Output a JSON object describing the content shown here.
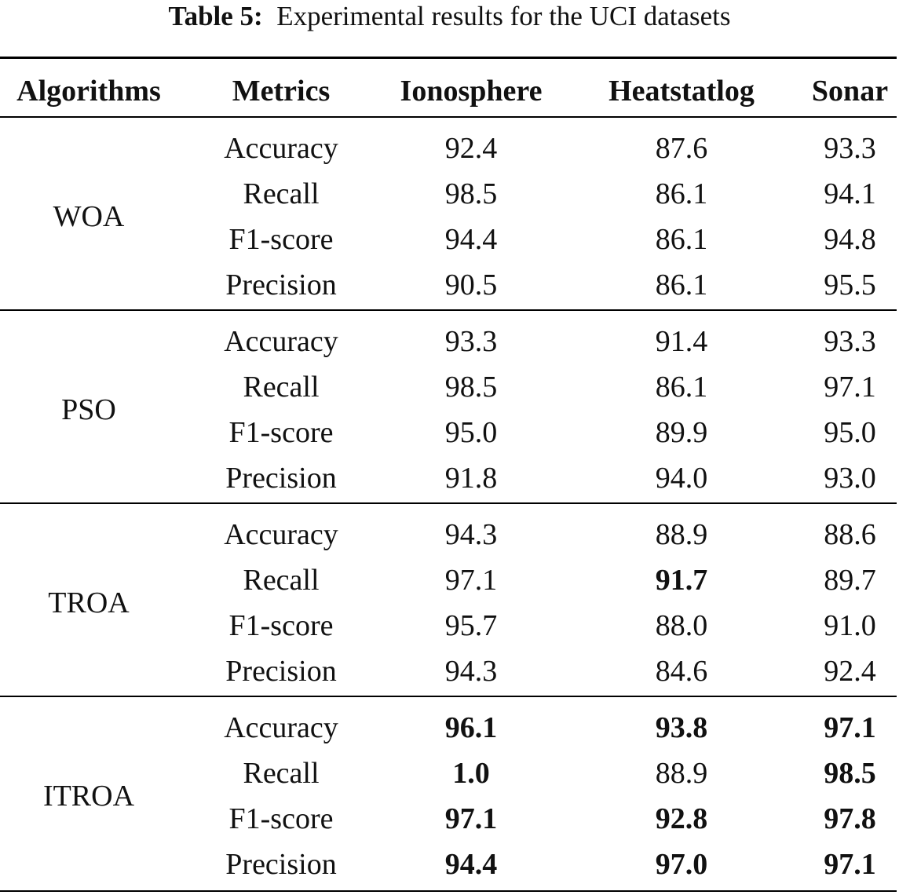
{
  "caption": {
    "label": "Table 5:",
    "text": "Experimental results for the UCI datasets"
  },
  "table": {
    "columns": [
      "Algorithms",
      "Metrics",
      "Ionosphere",
      "Heatstatlog",
      "Sonar"
    ],
    "groups": [
      {
        "algorithm": "WOA",
        "rows": [
          {
            "metric": "Accuracy",
            "values": [
              "92.4",
              "87.6",
              "93.3"
            ],
            "bold": [
              false,
              false,
              false
            ]
          },
          {
            "metric": "Recall",
            "values": [
              "98.5",
              "86.1",
              "94.1"
            ],
            "bold": [
              false,
              false,
              false
            ]
          },
          {
            "metric": "F1-score",
            "values": [
              "94.4",
              "86.1",
              "94.8"
            ],
            "bold": [
              false,
              false,
              false
            ]
          },
          {
            "metric": "Precision",
            "values": [
              "90.5",
              "86.1",
              "95.5"
            ],
            "bold": [
              false,
              false,
              false
            ]
          }
        ]
      },
      {
        "algorithm": "PSO",
        "rows": [
          {
            "metric": "Accuracy",
            "values": [
              "93.3",
              "91.4",
              "93.3"
            ],
            "bold": [
              false,
              false,
              false
            ]
          },
          {
            "metric": "Recall",
            "values": [
              "98.5",
              "86.1",
              "97.1"
            ],
            "bold": [
              false,
              false,
              false
            ]
          },
          {
            "metric": "F1-score",
            "values": [
              "95.0",
              "89.9",
              "95.0"
            ],
            "bold": [
              false,
              false,
              false
            ]
          },
          {
            "metric": "Precision",
            "values": [
              "91.8",
              "94.0",
              "93.0"
            ],
            "bold": [
              false,
              false,
              false
            ]
          }
        ]
      },
      {
        "algorithm": "TROA",
        "rows": [
          {
            "metric": "Accuracy",
            "values": [
              "94.3",
              "88.9",
              "88.6"
            ],
            "bold": [
              false,
              false,
              false
            ]
          },
          {
            "metric": "Recall",
            "values": [
              "97.1",
              "91.7",
              "89.7"
            ],
            "bold": [
              false,
              true,
              false
            ]
          },
          {
            "metric": "F1-score",
            "values": [
              "95.7",
              "88.0",
              "91.0"
            ],
            "bold": [
              false,
              false,
              false
            ]
          },
          {
            "metric": "Precision",
            "values": [
              "94.3",
              "84.6",
              "92.4"
            ],
            "bold": [
              false,
              false,
              false
            ]
          }
        ]
      },
      {
        "algorithm": "ITROA",
        "rows": [
          {
            "metric": "Accuracy",
            "values": [
              "96.1",
              "93.8",
              "97.1"
            ],
            "bold": [
              true,
              true,
              true
            ]
          },
          {
            "metric": "Recall",
            "values": [
              "1.0",
              "88.9",
              "98.5"
            ],
            "bold": [
              true,
              false,
              true
            ]
          },
          {
            "metric": "F1-score",
            "values": [
              "97.1",
              "92.8",
              "97.8"
            ],
            "bold": [
              true,
              true,
              true
            ]
          },
          {
            "metric": "Precision",
            "values": [
              "94.4",
              "97.0",
              "97.1"
            ],
            "bold": [
              true,
              true,
              true
            ]
          }
        ]
      }
    ]
  }
}
